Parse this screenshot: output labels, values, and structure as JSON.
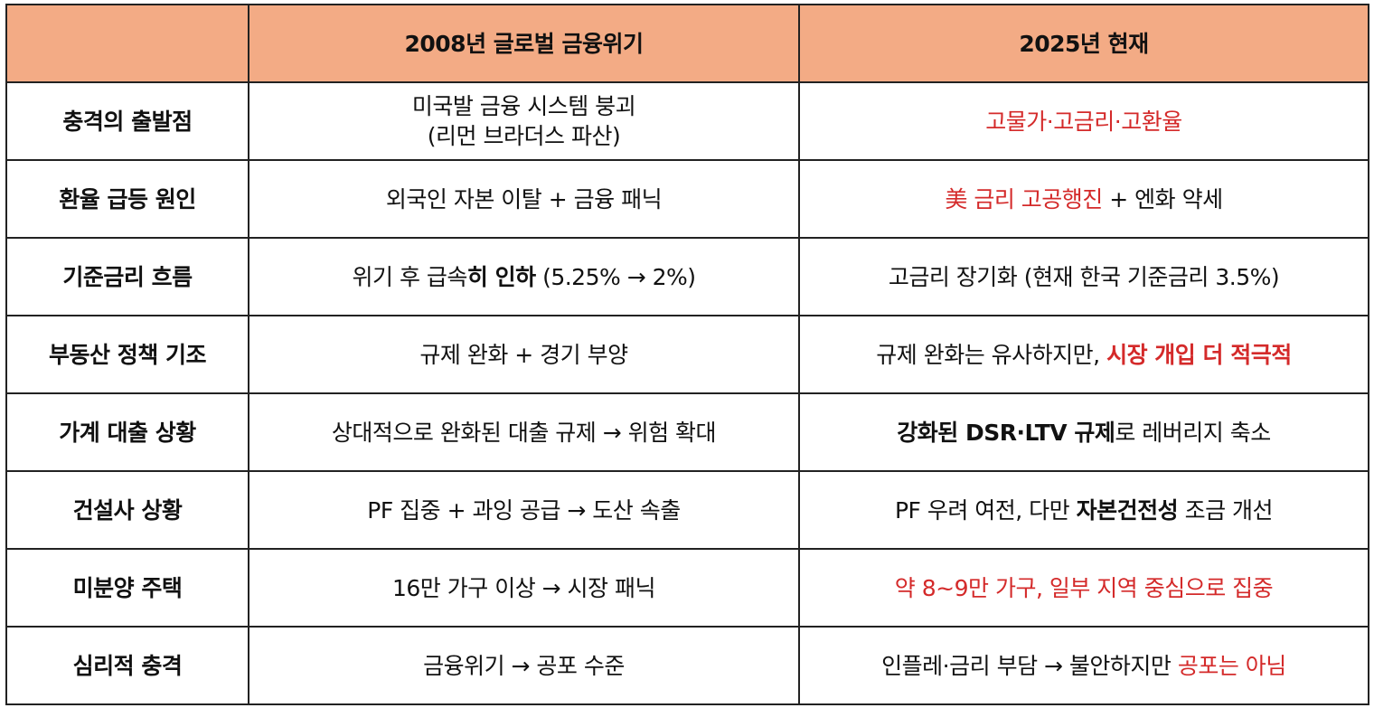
{
  "colors": {
    "header_bg": "#f3ab85",
    "highlight_red": "#d42a2a",
    "border": "#222222",
    "text": "#111111"
  },
  "header": {
    "corner": "",
    "col_2008": "2008년 글로벌 금융위기",
    "col_2025": "2025년 현재"
  },
  "rows": [
    {
      "label": "충격의 출발점",
      "c2008": {
        "line1": "미국발 금융 시스템 붕괴",
        "line2": "(리먼 브라더스 파산)"
      },
      "c2025": {
        "red": "고물가·고금리·고환율"
      }
    },
    {
      "label": "환율 급등 원인",
      "c2008": {
        "text": "외국인 자본 이탈 + 금융 패닉"
      },
      "c2025": {
        "red": "美 금리 고공행진",
        "rest": " + 엔화 약세"
      }
    },
    {
      "label": "기준금리 흐름",
      "c2008": {
        "pre": "위기 후 급속",
        "bold": "히 인하",
        "post": " (5.25% → 2%)"
      },
      "c2025": {
        "text": "고금리 장기화 (현재 한국 기준금리 3.5%)"
      }
    },
    {
      "label": "부동산 정책 기조",
      "c2008": {
        "text": "규제 완화 + 경기 부양"
      },
      "c2025": {
        "pre": "규제 완화는 유사하지만, ",
        "red": "시장 개입 더 적극적"
      }
    },
    {
      "label": "가계 대출 상황",
      "c2008": {
        "text": "상대적으로 완화된 대출 규제 → 위험 확대"
      },
      "c2025": {
        "bold": "강화된 DSR·LTV 규제",
        "rest": "로 레버리지 축소"
      }
    },
    {
      "label": "건설사 상황",
      "c2008": {
        "text": "PF 집중 + 과잉 공급 → 도산 속출"
      },
      "c2025": {
        "pre": "PF 우려 여전, 다만 ",
        "bold": "자본건전성",
        "post": " 조금 개선"
      }
    },
    {
      "label": "미분양 주택",
      "c2008": {
        "text": "16만 가구 이상 → 시장 패닉"
      },
      "c2025": {
        "red": "약 8~9만 가구, 일부 지역 중심으로 집중"
      }
    },
    {
      "label": "심리적 충격",
      "c2008": {
        "text": "금융위기 → 공포 수준"
      },
      "c2025": {
        "pre": "인플레·금리 부담 → 불안하지만 ",
        "red": "공포는 아님"
      }
    }
  ]
}
